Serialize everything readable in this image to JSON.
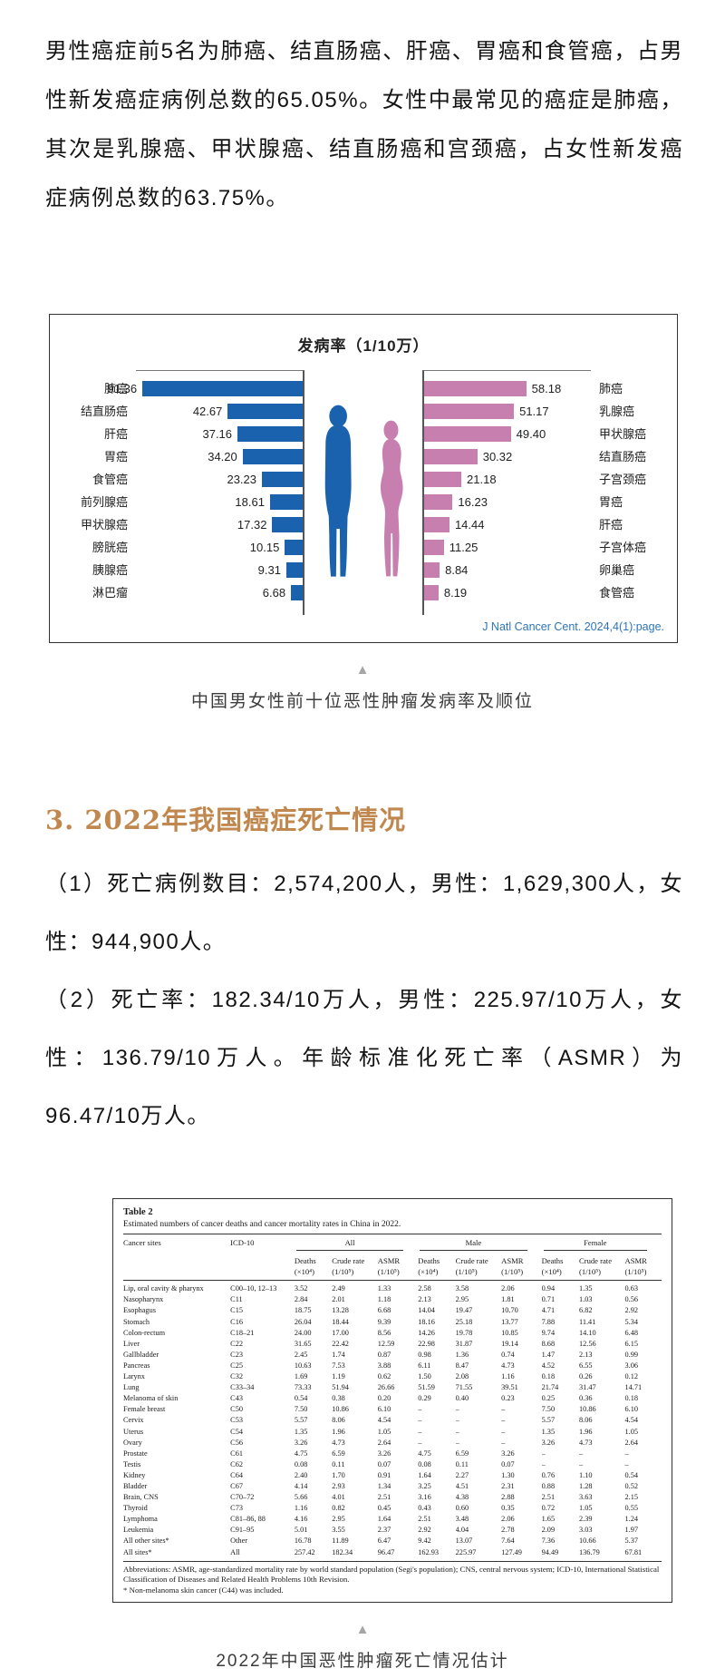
{
  "page": {
    "intro_paragraph": "男性癌症前5名为肺癌、结直肠癌、肝癌、胃癌和食管癌，占男性新发癌症病例总数的65.05%。女性中最常见的癌症是肺癌，其次是乳腺癌、甲状腺癌、结直肠癌和宫颈癌，占女性新发癌症病例总数的63.75%。",
    "figure1_caption": "中国男女性前十位恶性肿瘤发病率及顺位",
    "section_heading": "3. 2022年我国癌症死亡情况",
    "para1": "（1）死亡病例数目：2,574,200人，男性：1,629,300人，女性：944,900人。",
    "para2": "（2）死亡率：182.34/10万人，男性：225.97/10万人，女性：136.79/10万人。年龄标准化死亡率（ASMR）为96.47/10万人。",
    "figure2_caption": "2022年中国恶性肿瘤死亡情况估计",
    "triangle_glyph": "▲"
  },
  "chart_data": [
    {
      "type": "bar",
      "orientation": "bilateral-horizontal",
      "title": "发病率（1/10万）",
      "axis_max": 95,
      "grid": false,
      "source_note": "J Natl Cancer Cent. 2024,4(1):page.",
      "series": [
        {
          "name": "male",
          "color": "#1b62ae",
          "categories": [
            "肺癌",
            "结直肠癌",
            "肝癌",
            "胃癌",
            "食管癌",
            "前列腺癌",
            "甲状腺癌",
            "膀胱癌",
            "胰腺癌",
            "淋巴瘤"
          ],
          "values": [
            91.36,
            42.67,
            37.16,
            34.2,
            23.23,
            18.61,
            17.32,
            10.15,
            9.31,
            6.68
          ],
          "labels": [
            "91.36",
            "42.67",
            "37.16",
            "34.20",
            "23.23",
            "18.61",
            "17.32",
            "10.15",
            "9.31",
            "6.68"
          ]
        },
        {
          "name": "female",
          "color": "#c77fb0",
          "categories": [
            "肺癌",
            "乳腺癌",
            "甲状腺癌",
            "结直肠癌",
            "子宫颈癌",
            "胃癌",
            "肝癌",
            "子宫体癌",
            "卵巢癌",
            "食管癌"
          ],
          "values": [
            58.18,
            51.17,
            49.4,
            30.32,
            21.18,
            16.23,
            14.44,
            11.25,
            8.84,
            8.19
          ],
          "labels": [
            "58.18",
            "51.17",
            "49.40",
            "30.32",
            "21.18",
            "16.23",
            "14.44",
            "11.25",
            "8.84",
            "8.19"
          ]
        }
      ]
    },
    {
      "type": "table",
      "title": "Table 2",
      "subtitle": "Estimated numbers of cancer deaths and cancer mortality rates in China in 2022.",
      "col_site": "Cancer sites",
      "col_icd": "ICD-10",
      "groups": [
        "All",
        "Male",
        "Female"
      ],
      "sub_top": [
        "Deaths",
        "Crude rate",
        "ASMR"
      ],
      "sub_bot": [
        "(×10⁴)",
        "(1/10⁵)",
        "(1/10⁵)"
      ],
      "rows": [
        [
          "Lip, oral cavity & pharynx",
          "C00–10, 12–13",
          "3.52",
          "2.49",
          "1.33",
          "2.58",
          "3.58",
          "2.06",
          "0.94",
          "1.35",
          "0.63"
        ],
        [
          "Nasopharynx",
          "C11",
          "2.84",
          "2.01",
          "1.18",
          "2.13",
          "2.95",
          "1.81",
          "0.71",
          "1.03",
          "0.56"
        ],
        [
          "Esophagus",
          "C15",
          "18.75",
          "13.28",
          "6.68",
          "14.04",
          "19.47",
          "10.70",
          "4.71",
          "6.82",
          "2.92"
        ],
        [
          "Stomach",
          "C16",
          "26.04",
          "18.44",
          "9.39",
          "18.16",
          "25.18",
          "13.77",
          "7.88",
          "11.41",
          "5.34"
        ],
        [
          "Colon-rectum",
          "C18–21",
          "24.00",
          "17.00",
          "8.56",
          "14.26",
          "19.78",
          "10.85",
          "9.74",
          "14.10",
          "6.48"
        ],
        [
          "Liver",
          "C22",
          "31.65",
          "22.42",
          "12.59",
          "22.98",
          "31.87",
          "19.14",
          "8.68",
          "12.56",
          "6.15"
        ],
        [
          "Gallbladder",
          "C23",
          "2.45",
          "1.74",
          "0.87",
          "0.98",
          "1.36",
          "0.74",
          "1.47",
          "2.13",
          "0.99"
        ],
        [
          "Pancreas",
          "C25",
          "10.63",
          "7.53",
          "3.88",
          "6.11",
          "8.47",
          "4.73",
          "4.52",
          "6.55",
          "3.06"
        ],
        [
          "Larynx",
          "C32",
          "1.69",
          "1.19",
          "0.62",
          "1.50",
          "2.08",
          "1.16",
          "0.18",
          "0.26",
          "0.12"
        ],
        [
          "Lung",
          "C33–34",
          "73.33",
          "51.94",
          "26.66",
          "51.59",
          "71.55",
          "39.51",
          "21.74",
          "31.47",
          "14.71"
        ],
        [
          "Melanoma of skin",
          "C43",
          "0.54",
          "0.38",
          "0.20",
          "0.29",
          "0.40",
          "0.23",
          "0.25",
          "0.36",
          "0.18"
        ],
        [
          "Female breast",
          "C50",
          "7.50",
          "10.86",
          "6.10",
          "–",
          "–",
          "–",
          "7.50",
          "10.86",
          "6.10"
        ],
        [
          "Cervix",
          "C53",
          "5.57",
          "8.06",
          "4.54",
          "–",
          "–",
          "–",
          "5.57",
          "8.06",
          "4.54"
        ],
        [
          "Uterus",
          "C54",
          "1.35",
          "1.96",
          "1.05",
          "–",
          "–",
          "–",
          "1.35",
          "1.96",
          "1.05"
        ],
        [
          "Ovary",
          "C56",
          "3.26",
          "4.73",
          "2.64",
          "–",
          "–",
          "–",
          "3.26",
          "4.73",
          "2.64"
        ],
        [
          "Prostate",
          "C61",
          "4.75",
          "6.59",
          "3.26",
          "4.75",
          "6.59",
          "3.26",
          "–",
          "–",
          "–"
        ],
        [
          "Testis",
          "C62",
          "0.08",
          "0.11",
          "0.07",
          "0.08",
          "0.11",
          "0.07",
          "–",
          "–",
          "–"
        ],
        [
          "Kidney",
          "C64",
          "2.40",
          "1.70",
          "0.91",
          "1.64",
          "2.27",
          "1.30",
          "0.76",
          "1.10",
          "0.54"
        ],
        [
          "Bladder",
          "C67",
          "4.14",
          "2.93",
          "1.34",
          "3.25",
          "4.51",
          "2.31",
          "0.88",
          "1.28",
          "0.52"
        ],
        [
          "Brain, CNS",
          "C70–72",
          "5.66",
          "4.01",
          "2.51",
          "3.16",
          "4.38",
          "2.88",
          "2.51",
          "3.63",
          "2.15"
        ],
        [
          "Thyroid",
          "C73",
          "1.16",
          "0.82",
          "0.45",
          "0.43",
          "0.60",
          "0.35",
          "0.72",
          "1.05",
          "0.55"
        ],
        [
          "Lymphoma",
          "C81–86, 88",
          "4.16",
          "2.95",
          "1.64",
          "2.51",
          "3.48",
          "2.06",
          "1.65",
          "2.39",
          "1.24"
        ],
        [
          "Leukemia",
          "C91–95",
          "5.01",
          "3.55",
          "2.37",
          "2.92",
          "4.04",
          "2.78",
          "2.09",
          "3.03",
          "1.97"
        ],
        [
          "All other sites*",
          "Other",
          "16.78",
          "11.89",
          "6.47",
          "9.42",
          "13.07",
          "7.64",
          "7.36",
          "10.66",
          "5.37"
        ],
        [
          "All sites*",
          "All",
          "257.42",
          "182.34",
          "96.47",
          "162.93",
          "225.97",
          "127.49",
          "94.49",
          "136.79",
          "67.81"
        ]
      ],
      "footnote1": "Abbreviations: ASMR, age-standardized mortality rate by world standard population (Segi's population); CNS, central nervous system; ICD-10, International Statistical Classification of Diseases and Related Health Problems 10th Revision.",
      "footnote2": "* Non-melanoma skin cancer (C44) was included."
    }
  ]
}
